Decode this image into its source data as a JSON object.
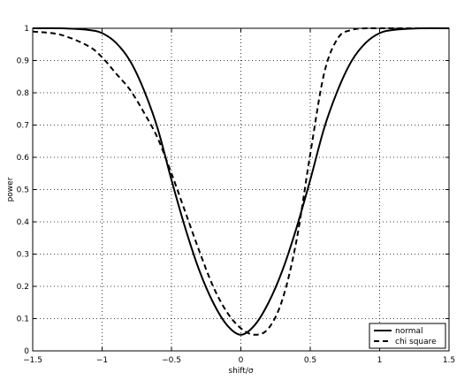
{
  "chart_data": {
    "type": "line",
    "xlabel": "shift/σ",
    "ylabel": "power",
    "xlim": [
      -1.5,
      1.5
    ],
    "ylim": [
      0,
      1
    ],
    "xticks": [
      "−1.5",
      "−1",
      "−0.5",
      "0",
      "0.5",
      "1",
      "1.5"
    ],
    "yticks": [
      "0",
      "0.1",
      "0.2",
      "0.3",
      "0.4",
      "0.5",
      "0.6",
      "0.7",
      "0.8",
      "0.9",
      "1"
    ],
    "grid": true,
    "legend_position": "bottom-right",
    "series": [
      {
        "name": "normal",
        "style": "solid",
        "x": [
          -1.5,
          -1.3,
          -1.1,
          -1.0,
          -0.9,
          -0.8,
          -0.7,
          -0.6,
          -0.5,
          -0.4,
          -0.3,
          -0.2,
          -0.1,
          0.0,
          0.1,
          0.2,
          0.3,
          0.4,
          0.5,
          0.6,
          0.7,
          0.8,
          0.9,
          1.0,
          1.1,
          1.3,
          1.5
        ],
        "y": [
          1.0,
          1.0,
          0.995,
          0.985,
          0.955,
          0.9,
          0.81,
          0.69,
          0.53,
          0.38,
          0.25,
          0.15,
          0.08,
          0.05,
          0.08,
          0.15,
          0.25,
          0.38,
          0.53,
          0.69,
          0.81,
          0.9,
          0.955,
          0.985,
          0.995,
          1.0,
          1.0
        ]
      },
      {
        "name": "chi square",
        "style": "dashed",
        "x": [
          -1.5,
          -1.3,
          -1.1,
          -1.0,
          -0.9,
          -0.8,
          -0.7,
          -0.6,
          -0.5,
          -0.4,
          -0.3,
          -0.2,
          -0.1,
          0.0,
          0.1,
          0.2,
          0.3,
          0.4,
          0.5,
          0.6,
          0.7,
          0.8,
          0.9,
          1.0,
          1.2,
          1.5
        ],
        "y": [
          0.99,
          0.98,
          0.945,
          0.91,
          0.86,
          0.81,
          0.74,
          0.66,
          0.55,
          0.43,
          0.31,
          0.2,
          0.12,
          0.07,
          0.05,
          0.07,
          0.16,
          0.34,
          0.61,
          0.86,
          0.97,
          0.995,
          1.0,
          1.0,
          1.0,
          1.0
        ]
      }
    ]
  }
}
